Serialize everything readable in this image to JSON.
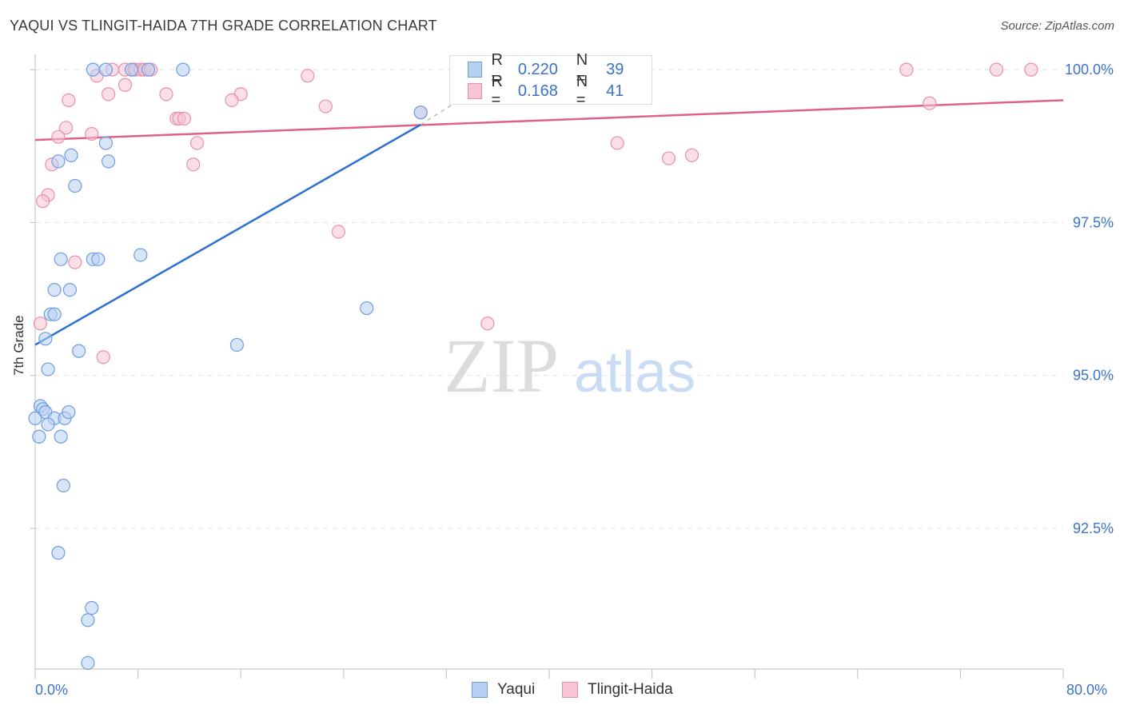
{
  "title": "YAQUI VS TLINGIT-HAIDA 7TH GRADE CORRELATION CHART",
  "source": "Source: ZipAtlas.com",
  "watermark": {
    "zip": "ZIP",
    "atlas": "atlas"
  },
  "colors": {
    "yaqui_fill": "#b8d0f2",
    "yaqui_stroke": "#6d9de0",
    "yaqui_line": "#2f6fd0",
    "tlingit_fill": "#f6c4d4",
    "tlingit_stroke": "#e98fae",
    "tlingit_line": "#e0608c",
    "tick_text": "#3a73c9",
    "grid": "#e2e2e2"
  },
  "legend": {
    "r_label": "R =",
    "n_label": "N =",
    "rows": [
      {
        "series": "Yaqui",
        "r": "0.220",
        "n": "39"
      },
      {
        "series": "Tlingit-Haida",
        "r": "0.168",
        "n": "41"
      }
    ]
  },
  "bottom_legend": [
    "Yaqui",
    "Tlingit-Haida"
  ],
  "chart_data": {
    "type": "scatter",
    "title": "YAQUI VS TLINGIT-HAIDA 7TH GRADE CORRELATION CHART",
    "xlabel": "",
    "ylabel": "7th Grade",
    "xlim": [
      0,
      80
    ],
    "ylim": [
      90.2,
      100.25
    ],
    "x_tick_labels": [
      "0.0%",
      "80.0%"
    ],
    "y_ticks": [
      92.5,
      95.0,
      97.5,
      100.0
    ],
    "y_tick_labels": [
      "92.5%",
      "95.0%",
      "97.5%",
      "100.0%"
    ],
    "grid": "horizontal dashed",
    "legend_position": "top-center",
    "series": [
      {
        "name": "Yaqui",
        "points": [
          [
            4.5,
            100.0
          ],
          [
            5.5,
            100.0
          ],
          [
            7.5,
            100.0
          ],
          [
            8.8,
            100.0
          ],
          [
            11.5,
            100.0
          ],
          [
            5.5,
            98.8
          ],
          [
            2.8,
            98.6
          ],
          [
            1.8,
            98.5
          ],
          [
            5.7,
            98.5
          ],
          [
            3.1,
            98.1
          ],
          [
            2.0,
            96.9
          ],
          [
            4.5,
            96.9
          ],
          [
            4.9,
            96.9
          ],
          [
            8.2,
            96.97
          ],
          [
            1.5,
            96.4
          ],
          [
            2.7,
            96.4
          ],
          [
            1.2,
            96.0
          ],
          [
            1.5,
            96.0
          ],
          [
            25.8,
            96.1
          ],
          [
            0.8,
            95.6
          ],
          [
            3.4,
            95.4
          ],
          [
            15.7,
            95.5
          ],
          [
            1.0,
            95.1
          ],
          [
            0.4,
            94.5
          ],
          [
            0.6,
            94.45
          ],
          [
            0.8,
            94.4
          ],
          [
            1.5,
            94.3
          ],
          [
            2.3,
            94.3
          ],
          [
            2.6,
            94.4
          ],
          [
            0.0,
            94.3
          ],
          [
            1.0,
            94.2
          ],
          [
            0.3,
            94.0
          ],
          [
            2.0,
            94.0
          ],
          [
            2.2,
            93.2
          ],
          [
            1.8,
            92.1
          ],
          [
            4.4,
            91.2
          ],
          [
            4.1,
            91.0
          ],
          [
            4.1,
            90.3
          ],
          [
            30.0,
            99.3
          ]
        ]
      },
      {
        "name": "Tlingit-Haida",
        "points": [
          [
            4.8,
            99.9
          ],
          [
            6.0,
            100.0
          ],
          [
            7.0,
            100.0
          ],
          [
            7.7,
            100.0
          ],
          [
            7.8,
            100.0
          ],
          [
            8.2,
            100.0
          ],
          [
            8.5,
            100.0
          ],
          [
            9.0,
            100.0
          ],
          [
            21.2,
            99.9
          ],
          [
            36.0,
            100.0
          ],
          [
            67.8,
            100.0
          ],
          [
            74.8,
            100.0
          ],
          [
            77.5,
            100.0
          ],
          [
            7.0,
            99.75
          ],
          [
            5.7,
            99.6
          ],
          [
            10.2,
            99.6
          ],
          [
            16.0,
            99.6
          ],
          [
            2.6,
            99.5
          ],
          [
            15.3,
            99.5
          ],
          [
            22.6,
            99.4
          ],
          [
            11.0,
            99.2
          ],
          [
            11.2,
            99.2
          ],
          [
            11.6,
            99.2
          ],
          [
            30.0,
            99.3
          ],
          [
            69.6,
            99.45
          ],
          [
            2.4,
            99.05
          ],
          [
            1.8,
            98.9
          ],
          [
            4.4,
            98.95
          ],
          [
            12.6,
            98.8
          ],
          [
            45.3,
            98.8
          ],
          [
            49.3,
            98.55
          ],
          [
            51.1,
            98.6
          ],
          [
            1.3,
            98.45
          ],
          [
            12.3,
            98.45
          ],
          [
            1.0,
            97.95
          ],
          [
            0.6,
            97.85
          ],
          [
            23.6,
            97.35
          ],
          [
            3.1,
            96.85
          ],
          [
            0.4,
            95.85
          ],
          [
            35.2,
            95.85
          ],
          [
            5.3,
            95.3
          ]
        ]
      }
    ],
    "trend_lines": [
      {
        "series": "Yaqui",
        "x": [
          0,
          30
        ],
        "y": [
          95.5,
          99.1
        ],
        "dashed_extension_to": [
          36,
          99.9
        ]
      },
      {
        "series": "Tlingit-Haida",
        "x": [
          0,
          80
        ],
        "y": [
          98.85,
          99.5
        ]
      }
    ]
  }
}
